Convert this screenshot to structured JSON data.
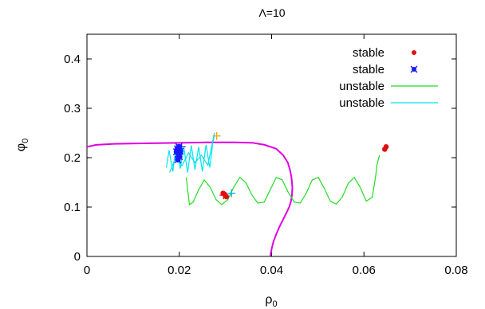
{
  "chart_data": {
    "type": "line",
    "title": "Λ=10",
    "xlabel": "ρ",
    "xlabel_sub": "0",
    "ylabel": "φ",
    "ylabel_sub": "0",
    "xlim": [
      0,
      0.08
    ],
    "ylim": [
      0,
      0.45
    ],
    "xticks": [
      0,
      0.02,
      0.04,
      0.06,
      0.08
    ],
    "xtick_labels": [
      "0",
      "0.02",
      "0.04",
      "0.06",
      "0.08"
    ],
    "yticks": [
      0,
      0.1,
      0.2,
      0.3,
      0.4
    ],
    "ytick_labels": [
      "0",
      "0.1",
      "0.2",
      "0.3",
      "0.4"
    ],
    "legend_position": "top-right",
    "boundary": {
      "color": "#e000e0",
      "x": [
        0.0,
        0.002,
        0.006,
        0.012,
        0.02,
        0.026,
        0.032,
        0.036,
        0.0385,
        0.041,
        0.0425,
        0.0435,
        0.044,
        0.0443,
        0.0445,
        0.0444,
        0.0442,
        0.0438,
        0.0433,
        0.0425,
        0.0417,
        0.041,
        0.0404,
        0.04,
        0.0398,
        0.0397
      ],
      "y": [
        0.222,
        0.226,
        0.228,
        0.229,
        0.23,
        0.231,
        0.231,
        0.23,
        0.226,
        0.218,
        0.205,
        0.19,
        0.175,
        0.16,
        0.14,
        0.125,
        0.112,
        0.1,
        0.09,
        0.075,
        0.06,
        0.045,
        0.03,
        0.015,
        0.005,
        0.0
      ]
    },
    "series": [
      {
        "name": "stable",
        "kind": "points",
        "marker": "circle",
        "color": "#e01010",
        "x": [
          0.0298,
          0.03,
          0.0295,
          0.0302,
          0.0648,
          0.0645
        ],
        "y": [
          0.126,
          0.123,
          0.128,
          0.121,
          0.222,
          0.217
        ]
      },
      {
        "name": "stable",
        "kind": "points",
        "marker": "star",
        "color": "#1a1aff",
        "x": [
          0.0196,
          0.0199,
          0.0202,
          0.0198,
          0.0194,
          0.02,
          0.0197
        ],
        "y": [
          0.218,
          0.222,
          0.213,
          0.207,
          0.212,
          0.202,
          0.196
        ]
      },
      {
        "name": "unstable",
        "kind": "line",
        "color": "#22dd22",
        "x": [
          0.0215,
          0.0222,
          0.023,
          0.0242,
          0.0254,
          0.0267,
          0.028,
          0.0292,
          0.0305,
          0.0318,
          0.0331,
          0.0344,
          0.0357,
          0.037,
          0.0384,
          0.0397,
          0.041,
          0.0423,
          0.0436,
          0.0449,
          0.0462,
          0.0475,
          0.0488,
          0.0501,
          0.0514,
          0.0527,
          0.054,
          0.0553,
          0.0566,
          0.0579,
          0.0592,
          0.0605,
          0.0618,
          0.0625,
          0.0628,
          0.0632,
          0.0634
        ],
        "y": [
          0.16,
          0.105,
          0.11,
          0.135,
          0.155,
          0.14,
          0.115,
          0.105,
          0.115,
          0.14,
          0.16,
          0.15,
          0.125,
          0.108,
          0.11,
          0.135,
          0.16,
          0.155,
          0.13,
          0.11,
          0.108,
          0.128,
          0.155,
          0.16,
          0.138,
          0.112,
          0.106,
          0.12,
          0.148,
          0.16,
          0.14,
          0.112,
          0.12,
          0.16,
          0.185,
          0.2,
          0.205
        ]
      },
      {
        "name": "unstable",
        "kind": "line",
        "color": "#00e5ee",
        "x": [
          0.0172,
          0.0178,
          0.0186,
          0.0194,
          0.0202,
          0.021,
          0.0218,
          0.0226,
          0.0234,
          0.0242,
          0.025,
          0.0258,
          0.0266,
          0.0271,
          0.0272,
          0.0275,
          0.0276,
          0.0262,
          0.0248,
          0.0234,
          0.022,
          0.0206,
          0.0192,
          0.0179
        ],
        "y": [
          0.18,
          0.215,
          0.172,
          0.228,
          0.178,
          0.22,
          0.17,
          0.225,
          0.176,
          0.222,
          0.172,
          0.226,
          0.18,
          0.215,
          0.23,
          0.24,
          0.25,
          0.185,
          0.205,
          0.19,
          0.21,
          0.184,
          0.2,
          0.17
        ]
      }
    ],
    "annotations": [
      {
        "type": "cross",
        "color": "#f5a020",
        "x": 0.0281,
        "y": 0.244
      },
      {
        "type": "cross",
        "color": "#00aaee",
        "x": 0.0313,
        "y": 0.128
      },
      {
        "type": "cross",
        "color": "#e01010",
        "x": 0.0296,
        "y": 0.124
      },
      {
        "type": "cross",
        "color": "#1a1aff",
        "x": 0.0205,
        "y": 0.222
      }
    ]
  }
}
